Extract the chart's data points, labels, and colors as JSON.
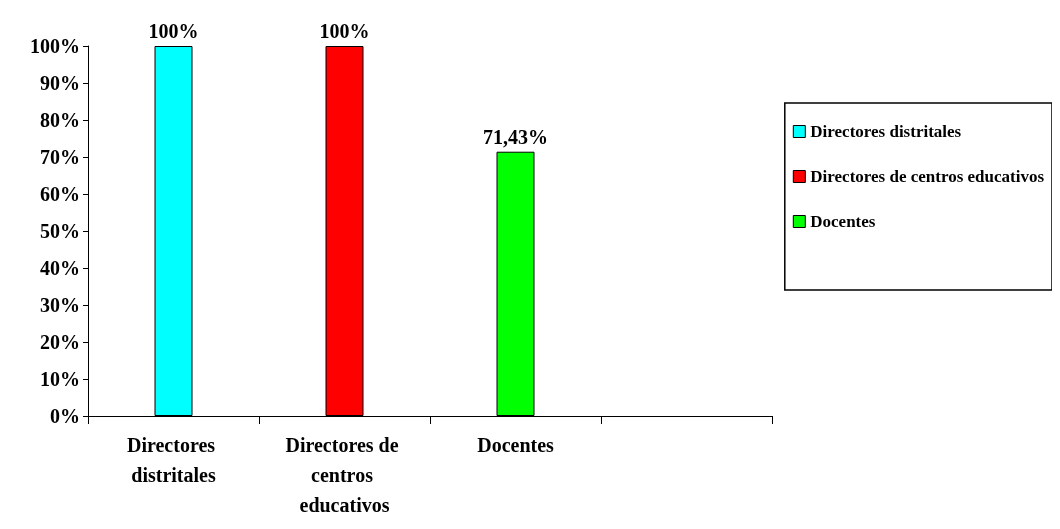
{
  "chart_data": {
    "type": "bar",
    "categories": [
      "Directores distritales",
      "Directores de centros educativos",
      "Docentes",
      null
    ],
    "series": [
      {
        "name": "Directores distritales",
        "color": "#00ffff",
        "values": [
          100,
          null,
          null,
          null
        ],
        "value_labels": [
          "100%",
          null,
          null,
          null
        ]
      },
      {
        "name": "Directores de centros educativos",
        "color": "#ff0000",
        "values": [
          null,
          100,
          null,
          null
        ],
        "value_labels": [
          null,
          "100%",
          null,
          null
        ]
      },
      {
        "name": "Docentes",
        "color": "#00ff00",
        "values": [
          null,
          null,
          71.43,
          null
        ],
        "value_labels": [
          null,
          null,
          "71,43%",
          null
        ]
      }
    ],
    "ylim": [
      0,
      100
    ],
    "yticks": [
      {
        "value": 0,
        "label": "0%"
      },
      {
        "value": 10,
        "label": "10%"
      },
      {
        "value": 20,
        "label": "20%"
      },
      {
        "value": 30,
        "label": "30%"
      },
      {
        "value": 40,
        "label": "40%"
      },
      {
        "value": 50,
        "label": "50%"
      },
      {
        "value": 60,
        "label": "60%"
      },
      {
        "value": 70,
        "label": "70%"
      },
      {
        "value": 80,
        "label": "80%"
      },
      {
        "value": 90,
        "label": "90%"
      },
      {
        "value": 100,
        "label": "100%"
      }
    ],
    "grid": false,
    "legend": "right"
  }
}
